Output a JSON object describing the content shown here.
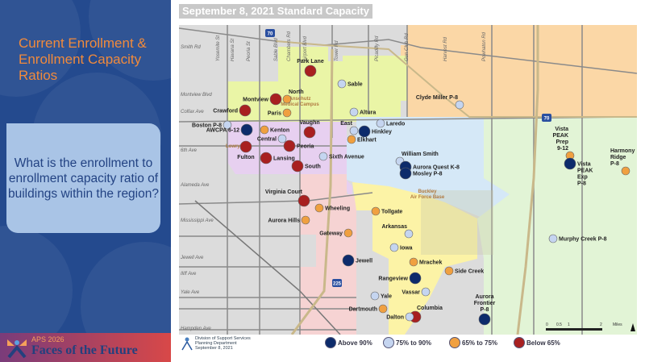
{
  "left_panel": {
    "title": "Current Enrollment & Enrollment Capacity Ratios",
    "question": "What is the enrollment to enrollment capacity ratio of buildings within the region?",
    "footer_year": "APS 2026",
    "footer_brand": "Faces of the Future"
  },
  "map": {
    "title": "September 8, 2021 Standard Capacity",
    "colors": {
      "above_90": "#0d2b6b",
      "75_90": "#c5d5f0",
      "65_75": "#f0a040",
      "below_65": "#a82020"
    },
    "roads": [
      "Smith Rd",
      "Montview Blvd",
      "Colfax Ave",
      "6th Ave",
      "Alameda Ave",
      "Mississippi Ave",
      "Jewell Ave",
      "Iliff Ave",
      "Yale Ave",
      "Hampden Ave",
      "Yosemite St",
      "Havana St",
      "Peoria St",
      "Sable Blvd",
      "Chambers Rd",
      "Airport Blvd",
      "Tower Rd",
      "Picadilly Rd",
      "Gun Club Rd",
      "Harvest Rd",
      "Powhaton Rd"
    ],
    "areas": [
      "Anschutz Medical Campus",
      "Lowry",
      "Buckley Air Force Base"
    ],
    "highways": [
      "70",
      "70",
      "225"
    ],
    "schools": [
      {
        "name": "Park Lane",
        "cat": "below_65"
      },
      {
        "name": "Sable",
        "cat": "75_90"
      },
      {
        "name": "Montview",
        "cat": "below_65"
      },
      {
        "name": "North",
        "cat": "65_75"
      },
      {
        "name": "Crawford",
        "cat": "below_65"
      },
      {
        "name": "Paris",
        "cat": "65_75"
      },
      {
        "name": "Altura",
        "cat": "75_90"
      },
      {
        "name": "Boston P-8",
        "cat": "75_90"
      },
      {
        "name": "AWCPA 6-12",
        "cat": "above_90"
      },
      {
        "name": "Kenton",
        "cat": "65_75"
      },
      {
        "name": "Vaughn",
        "cat": "below_65"
      },
      {
        "name": "Central",
        "cat": "75_90"
      },
      {
        "name": "Peoria",
        "cat": "below_65"
      },
      {
        "name": "Fulton",
        "cat": "below_65"
      },
      {
        "name": "Lansing",
        "cat": "below_65"
      },
      {
        "name": "Sixth Avenue",
        "cat": "75_90"
      },
      {
        "name": "South",
        "cat": "below_65"
      },
      {
        "name": "East",
        "cat": "75_90"
      },
      {
        "name": "Hinkley",
        "cat": "above_90"
      },
      {
        "name": "Laredo",
        "cat": "75_90"
      },
      {
        "name": "Elkhart",
        "cat": "65_75"
      },
      {
        "name": "William Smith",
        "cat": "75_90"
      },
      {
        "name": "Aurora Quest K-8",
        "cat": "above_90"
      },
      {
        "name": "Mosley P-8",
        "cat": "above_90"
      },
      {
        "name": "Clyde Miller P-8",
        "cat": "75_90"
      },
      {
        "name": "Vista PEAK Prep 9-12",
        "cat": "65_75"
      },
      {
        "name": "Vista PEAK Exp P-8",
        "cat": "above_90"
      },
      {
        "name": "Harmony Ridge P-8",
        "cat": "65_75"
      },
      {
        "name": "Virginia Court",
        "cat": "below_65"
      },
      {
        "name": "Wheeling",
        "cat": "65_75"
      },
      {
        "name": "Aurora Hills",
        "cat": "65_75"
      },
      {
        "name": "Tollgate",
        "cat": "65_75"
      },
      {
        "name": "Gateway",
        "cat": "65_75"
      },
      {
        "name": "Arkansas",
        "cat": "75_90"
      },
      {
        "name": "Iowa",
        "cat": "75_90"
      },
      {
        "name": "Jewell",
        "cat": "above_90"
      },
      {
        "name": "Mrachek",
        "cat": "65_75"
      },
      {
        "name": "Side Creek",
        "cat": "65_75"
      },
      {
        "name": "Rangeview",
        "cat": "above_90"
      },
      {
        "name": "Vassar",
        "cat": "75_90"
      },
      {
        "name": "Yale",
        "cat": "75_90"
      },
      {
        "name": "Dartmouth",
        "cat": "65_75"
      },
      {
        "name": "Columbia",
        "cat": "below_65"
      },
      {
        "name": "Dalton",
        "cat": "75_90"
      },
      {
        "name": "Aurora Frontier P-8",
        "cat": "above_90"
      },
      {
        "name": "Murphy Creek P-8",
        "cat": "75_90"
      }
    ],
    "scale_labels": [
      "0",
      "0.5",
      "1",
      "2",
      "Miles"
    ]
  },
  "legend": {
    "division": [
      "Division of Support Services",
      "Planning Department",
      "September 8, 2021"
    ],
    "items": [
      {
        "label": "Above 90%",
        "cat": "above_90"
      },
      {
        "label": "75% to 90%",
        "cat": "75_90"
      },
      {
        "label": "65% to 75%",
        "cat": "65_75"
      },
      {
        "label": "Below 65%",
        "cat": "below_65"
      }
    ]
  }
}
